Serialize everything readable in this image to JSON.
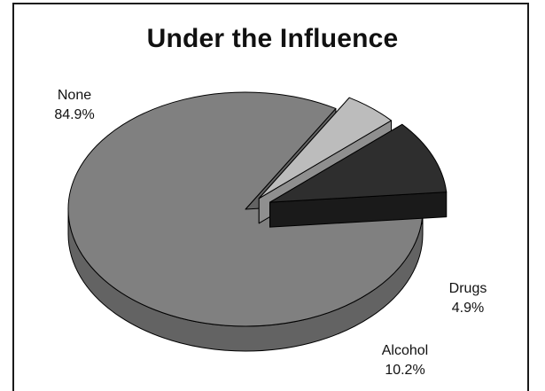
{
  "chart_data": {
    "type": "pie",
    "title": "Under the Influence",
    "style": "3d-exploded",
    "slices": [
      {
        "name": "None",
        "value": 84.9,
        "value_label": "84.9%",
        "color": "#808080",
        "side_color": "#636363"
      },
      {
        "name": "Drugs",
        "value": 4.9,
        "value_label": "4.9%",
        "color": "#bcbcbc",
        "side_color": "#8f8f8f",
        "exploded": true
      },
      {
        "name": "Alcohol",
        "value": 10.2,
        "value_label": "10.2%",
        "color": "#2e2e2e",
        "side_color": "#1a1a1a",
        "exploded": true
      }
    ]
  }
}
